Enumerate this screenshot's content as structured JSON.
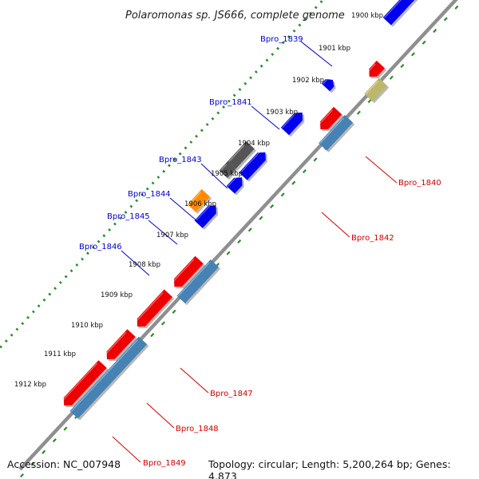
{
  "title": "Polaromonas sp. JS666, complete genome",
  "accession_text": "Accession: NC_007948",
  "summary_text": "Topology: circular; Length: 5,200,264 bp; Genes: 4,873",
  "colors": {
    "backbone": "#8f8f8f",
    "tick": "#2e8b2e",
    "forward_label": "#0000cc",
    "reverse_label": "#cc0000",
    "blue": "#0000ee",
    "red": "#ee0000",
    "steel": "#4682b4",
    "olive": "#bdb76b",
    "slate": "#7b68ee",
    "gray": "#555555",
    "orange": "#ff8c00",
    "light": "#c8c8c8"
  },
  "ticks": [
    {
      "label": "1900 kbp",
      "kbp": 1900
    },
    {
      "label": "1901 kbp",
      "kbp": 1901
    },
    {
      "label": "1902 kbp",
      "kbp": 1902
    },
    {
      "label": "1903 kbp",
      "kbp": 1903
    },
    {
      "label": "1904 kbp",
      "kbp": 1904
    },
    {
      "label": "1905 kbp",
      "kbp": 1905
    },
    {
      "label": "1906 kbp",
      "kbp": 1906
    },
    {
      "label": "1907 kbp",
      "kbp": 1907
    },
    {
      "label": "1908 kbp",
      "kbp": 1908
    },
    {
      "label": "1909 kbp",
      "kbp": 1909
    },
    {
      "label": "1910 kbp",
      "kbp": 1910
    },
    {
      "label": "1911 kbp",
      "kbp": 1911
    },
    {
      "label": "1912 kbp",
      "kbp": 1912
    }
  ],
  "gene_labels": [
    {
      "text": "Bpro_1839",
      "strand": "forward"
    },
    {
      "text": "Bpro_1840",
      "strand": "reverse"
    },
    {
      "text": "Bpro_1841",
      "strand": "forward"
    },
    {
      "text": "Bpro_1842",
      "strand": "reverse"
    },
    {
      "text": "Bpro_1843",
      "strand": "forward"
    },
    {
      "text": "Bpro_1844",
      "strand": "forward"
    },
    {
      "text": "Bpro_1845",
      "strand": "forward"
    },
    {
      "text": "Bpro_1846",
      "strand": "forward"
    },
    {
      "text": "Bpro_1847",
      "strand": "reverse"
    },
    {
      "text": "Bpro_1848",
      "strand": "reverse"
    },
    {
      "text": "Bpro_1849",
      "strand": "reverse"
    }
  ]
}
